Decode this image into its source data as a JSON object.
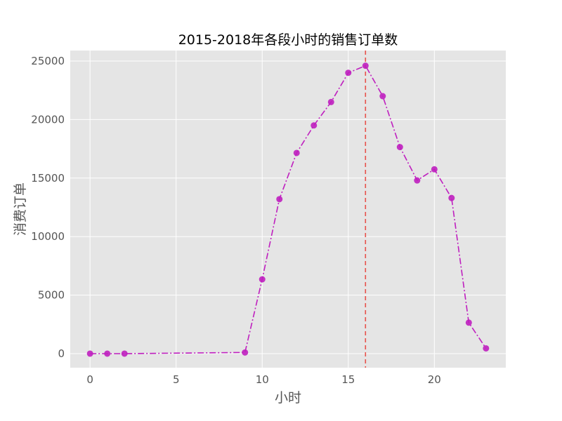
{
  "chart_data": {
    "type": "line",
    "title": "2015-2018年各段小时的销售订单数",
    "xlabel": "小时",
    "ylabel": "消费订单",
    "xlim": [
      -1.15,
      24.15
    ],
    "ylim": [
      -1200,
      25900
    ],
    "x_ticks": [
      0,
      5,
      10,
      15,
      20
    ],
    "y_ticks": [
      0,
      5000,
      10000,
      15000,
      20000,
      25000
    ],
    "grid": true,
    "series": [
      {
        "color": "#bf1fbf",
        "line_style": "dash-dot",
        "marker": "circle",
        "x": [
          0,
          1,
          2,
          9,
          10,
          11,
          12,
          13,
          14,
          15,
          16,
          17,
          18,
          19,
          20,
          21,
          22,
          23
        ],
        "y": [
          0,
          0,
          0,
          100,
          6350,
          13200,
          17150,
          19500,
          21500,
          24000,
          24600,
          22000,
          17650,
          14800,
          15750,
          13300,
          2650,
          450
        ]
      }
    ],
    "vline": {
      "x": 16,
      "color": "#e8514b",
      "style": "dashed"
    }
  }
}
